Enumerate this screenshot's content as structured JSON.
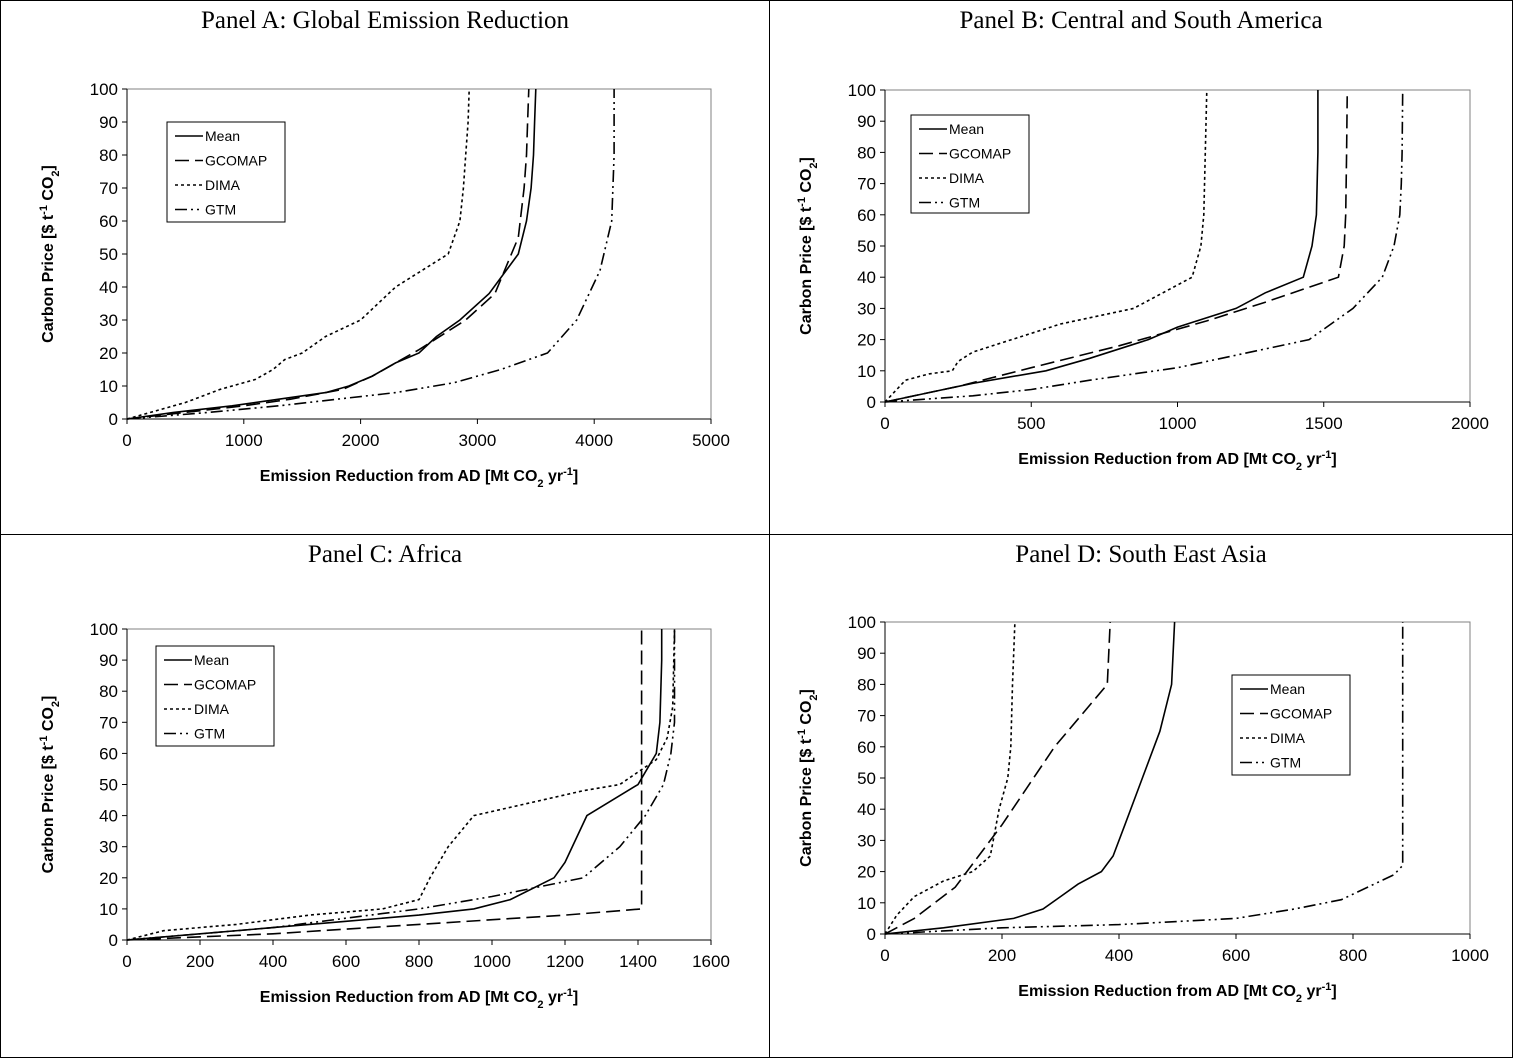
{
  "legend_labels": [
    "Mean",
    "GCOMAP",
    "DIMA",
    "GTM"
  ],
  "chart_data": [
    {
      "type": "line",
      "title": "Panel A: Global Emission Reduction",
      "xlabel": "Emission Reduction from AD [Mt CO₂ yr⁻¹]",
      "ylabel": "Carbon Price [$ t⁻¹ CO₂]",
      "xlim": [
        0,
        5000
      ],
      "ylim": [
        0,
        100
      ],
      "xticks": [
        0,
        1000,
        2000,
        3000,
        4000,
        5000
      ],
      "yticks": [
        0,
        10,
        20,
        30,
        40,
        50,
        60,
        70,
        80,
        90,
        100
      ],
      "legend_position": "top-left",
      "grid": false,
      "series": [
        {
          "name": "Mean",
          "style": "solid",
          "points": [
            [
              0,
              0
            ],
            [
              400,
              2
            ],
            [
              900,
              4
            ],
            [
              1300,
              6
            ],
            [
              1700,
              8
            ],
            [
              1900,
              10
            ],
            [
              2100,
              13
            ],
            [
              2300,
              17
            ],
            [
              2500,
              20
            ],
            [
              2650,
              25
            ],
            [
              2850,
              30
            ],
            [
              3100,
              38
            ],
            [
              3350,
              50
            ],
            [
              3420,
              60
            ],
            [
              3460,
              70
            ],
            [
              3480,
              80
            ],
            [
              3490,
              90
            ],
            [
              3500,
              100
            ]
          ]
        },
        {
          "name": "GCOMAP",
          "style": "dashed",
          "points": [
            [
              0,
              0
            ],
            [
              500,
              2
            ],
            [
              1000,
              4
            ],
            [
              1400,
              6
            ],
            [
              1850,
              9
            ],
            [
              2100,
              13
            ],
            [
              2500,
              21
            ],
            [
              2900,
              30
            ],
            [
              3150,
              38
            ],
            [
              3350,
              55
            ],
            [
              3400,
              70
            ],
            [
              3420,
              80
            ],
            [
              3430,
              90
            ],
            [
              3440,
              100
            ]
          ]
        },
        {
          "name": "DIMA",
          "style": "dotted",
          "points": [
            [
              0,
              0
            ],
            [
              200,
              2
            ],
            [
              500,
              5
            ],
            [
              800,
              9
            ],
            [
              1100,
              12
            ],
            [
              1250,
              15
            ],
            [
              1350,
              18
            ],
            [
              1500,
              20
            ],
            [
              1700,
              25
            ],
            [
              2000,
              30
            ],
            [
              2300,
              40
            ],
            [
              2750,
              50
            ],
            [
              2850,
              60
            ],
            [
              2880,
              70
            ],
            [
              2900,
              80
            ],
            [
              2920,
              90
            ],
            [
              2930,
              100
            ]
          ]
        },
        {
          "name": "GTM",
          "style": "dashdotdot",
          "points": [
            [
              0,
              0
            ],
            [
              700,
              2
            ],
            [
              1300,
              4
            ],
            [
              1800,
              6
            ],
            [
              2300,
              8
            ],
            [
              2800,
              11
            ],
            [
              3200,
              15
            ],
            [
              3600,
              20
            ],
            [
              3850,
              30
            ],
            [
              4050,
              45
            ],
            [
              4150,
              60
            ],
            [
              4160,
              70
            ],
            [
              4170,
              80
            ],
            [
              4170,
              90
            ],
            [
              4170,
              100
            ]
          ]
        }
      ]
    },
    {
      "type": "line",
      "title": "Panel B: Central and South America",
      "xlabel": "Emission Reduction from AD [Mt CO₂ yr⁻¹]",
      "ylabel": "Carbon Price [$ t⁻¹ CO₂]",
      "xlim": [
        0,
        2000
      ],
      "ylim": [
        0,
        100
      ],
      "xticks": [
        0,
        500,
        1000,
        1500,
        2000
      ],
      "yticks": [
        0,
        10,
        20,
        30,
        40,
        50,
        60,
        70,
        80,
        90,
        100
      ],
      "legend_position": "top-left",
      "grid": false,
      "series": [
        {
          "name": "Mean",
          "style": "solid",
          "points": [
            [
              0,
              0
            ],
            [
              150,
              3
            ],
            [
              300,
              6
            ],
            [
              550,
              10
            ],
            [
              700,
              14
            ],
            [
              900,
              20
            ],
            [
              1000,
              24
            ],
            [
              1200,
              30
            ],
            [
              1300,
              35
            ],
            [
              1430,
              40
            ],
            [
              1460,
              50
            ],
            [
              1475,
              60
            ],
            [
              1480,
              80
            ],
            [
              1480,
              100
            ]
          ]
        },
        {
          "name": "GCOMAP",
          "style": "dashed",
          "points": [
            [
              0,
              0
            ],
            [
              250,
              5
            ],
            [
              500,
              11
            ],
            [
              800,
              18
            ],
            [
              1100,
              26
            ],
            [
              1300,
              32
            ],
            [
              1550,
              40
            ],
            [
              1570,
              50
            ],
            [
              1575,
              60
            ],
            [
              1578,
              80
            ],
            [
              1580,
              98
            ]
          ]
        },
        {
          "name": "DIMA",
          "style": "dotted",
          "points": [
            [
              0,
              0
            ],
            [
              30,
              3
            ],
            [
              70,
              7
            ],
            [
              150,
              9
            ],
            [
              230,
              10
            ],
            [
              250,
              13
            ],
            [
              300,
              16
            ],
            [
              400,
              19
            ],
            [
              600,
              25
            ],
            [
              850,
              30
            ],
            [
              950,
              35
            ],
            [
              1050,
              40
            ],
            [
              1080,
              50
            ],
            [
              1090,
              60
            ],
            [
              1095,
              80
            ],
            [
              1100,
              100
            ]
          ]
        },
        {
          "name": "GTM",
          "style": "dashdotdot",
          "points": [
            [
              0,
              0
            ],
            [
              300,
              2
            ],
            [
              500,
              4
            ],
            [
              700,
              7
            ],
            [
              1000,
              11
            ],
            [
              1200,
              15
            ],
            [
              1450,
              20
            ],
            [
              1600,
              30
            ],
            [
              1700,
              40
            ],
            [
              1740,
              50
            ],
            [
              1760,
              60
            ],
            [
              1765,
              70
            ],
            [
              1768,
              80
            ],
            [
              1770,
              100
            ]
          ]
        }
      ]
    },
    {
      "type": "line",
      "title": "Panel C: Africa",
      "xlabel": "Emission Reduction from AD [Mt CO₂ yr⁻¹]",
      "ylabel": "Carbon Price [$ t⁻¹ CO₂]",
      "xlim": [
        0,
        1600
      ],
      "ylim": [
        0,
        100
      ],
      "xticks": [
        0,
        200,
        400,
        600,
        800,
        1000,
        1200,
        1400,
        1600
      ],
      "yticks": [
        0,
        10,
        20,
        30,
        40,
        50,
        60,
        70,
        80,
        90,
        100
      ],
      "legend_position": "top-left",
      "grid": false,
      "series": [
        {
          "name": "Mean",
          "style": "solid",
          "points": [
            [
              0,
              0
            ],
            [
              200,
              2
            ],
            [
              400,
              4
            ],
            [
              600,
              6
            ],
            [
              800,
              8
            ],
            [
              950,
              10
            ],
            [
              1050,
              13
            ],
            [
              1170,
              20
            ],
            [
              1200,
              25
            ],
            [
              1260,
              40
            ],
            [
              1400,
              50
            ],
            [
              1450,
              60
            ],
            [
              1460,
              70
            ],
            [
              1465,
              90
            ],
            [
              1465,
              100
            ]
          ]
        },
        {
          "name": "GCOMAP",
          "style": "dashed",
          "points": [
            [
              0,
              0
            ],
            [
              400,
              2
            ],
            [
              800,
              5
            ],
            [
              1200,
              8
            ],
            [
              1410,
              10
            ],
            [
              1410,
              40
            ],
            [
              1410,
              70
            ],
            [
              1410,
              100
            ]
          ]
        },
        {
          "name": "DIMA",
          "style": "dotted",
          "points": [
            [
              0,
              0
            ],
            [
              100,
              3
            ],
            [
              300,
              5
            ],
            [
              500,
              8
            ],
            [
              700,
              10
            ],
            [
              800,
              13
            ],
            [
              830,
              20
            ],
            [
              880,
              30
            ],
            [
              950,
              40
            ],
            [
              1100,
              44
            ],
            [
              1250,
              48
            ],
            [
              1350,
              50
            ],
            [
              1450,
              58
            ],
            [
              1480,
              65
            ],
            [
              1495,
              75
            ],
            [
              1500,
              100
            ]
          ]
        },
        {
          "name": "GTM",
          "style": "dashdotdot",
          "points": [
            [
              0,
              0
            ],
            [
              200,
              2
            ],
            [
              400,
              4
            ],
            [
              600,
              7
            ],
            [
              800,
              10
            ],
            [
              1000,
              14
            ],
            [
              1250,
              20
            ],
            [
              1350,
              30
            ],
            [
              1420,
              40
            ],
            [
              1470,
              50
            ],
            [
              1490,
              60
            ],
            [
              1500,
              70
            ],
            [
              1500,
              100
            ]
          ]
        }
      ]
    },
    {
      "type": "line",
      "title": "Panel D: South East Asia",
      "xlabel": "Emission Reduction from AD [Mt CO₂ yr⁻¹]",
      "ylabel": "Carbon Price [$ t⁻¹ CO₂]",
      "xlim": [
        0,
        1000
      ],
      "ylim": [
        0,
        100
      ],
      "xticks": [
        0,
        200,
        400,
        600,
        800,
        1000
      ],
      "yticks": [
        0,
        10,
        20,
        30,
        40,
        50,
        60,
        70,
        80,
        90,
        100
      ],
      "legend_position": "middle-right",
      "grid": false,
      "series": [
        {
          "name": "Mean",
          "style": "solid",
          "points": [
            [
              0,
              0
            ],
            [
              100,
              2
            ],
            [
              220,
              5
            ],
            [
              270,
              8
            ],
            [
              300,
              12
            ],
            [
              330,
              16
            ],
            [
              370,
              20
            ],
            [
              390,
              25
            ],
            [
              410,
              35
            ],
            [
              440,
              50
            ],
            [
              470,
              65
            ],
            [
              490,
              80
            ],
            [
              495,
              100
            ]
          ]
        },
        {
          "name": "GCOMAP",
          "style": "dashed",
          "points": [
            [
              0,
              0
            ],
            [
              50,
              5
            ],
            [
              120,
              15
            ],
            [
              200,
              35
            ],
            [
              290,
              60
            ],
            [
              380,
              80
            ],
            [
              385,
              100
            ]
          ]
        },
        {
          "name": "DIMA",
          "style": "dotted",
          "points": [
            [
              0,
              0
            ],
            [
              20,
              6
            ],
            [
              50,
              12
            ],
            [
              100,
              17
            ],
            [
              150,
              20
            ],
            [
              180,
              25
            ],
            [
              195,
              40
            ],
            [
              210,
              50
            ],
            [
              215,
              60
            ],
            [
              218,
              80
            ],
            [
              222,
              100
            ]
          ]
        },
        {
          "name": "GTM",
          "style": "dashdotdot",
          "points": [
            [
              0,
              0
            ],
            [
              200,
              2
            ],
            [
              400,
              3
            ],
            [
              600,
              5
            ],
            [
              700,
              8
            ],
            [
              780,
              11
            ],
            [
              870,
              19
            ],
            [
              885,
              22
            ],
            [
              885,
              60
            ],
            [
              885,
              100
            ]
          ]
        }
      ]
    }
  ]
}
